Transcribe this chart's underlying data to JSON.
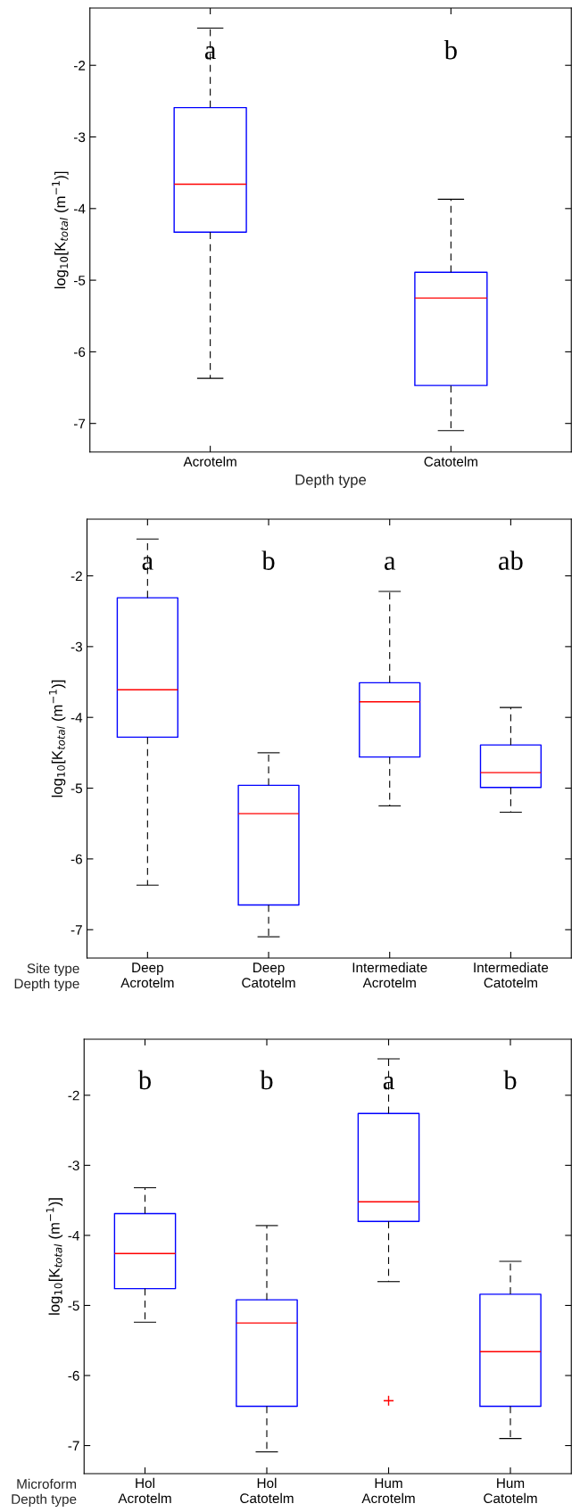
{
  "chart_data": [
    {
      "type": "box",
      "categories": [
        "Acrotelm",
        "Catotelm"
      ],
      "xlabel": "Depth type",
      "ylabel": "log$_{10}$[K$_{total}$ (m$^{−1}$)]",
      "color": "#0000ff",
      "ylim": [
        -7.4,
        -1.2
      ],
      "yticks": [
        -7,
        -6,
        -5,
        -4,
        -3,
        -2
      ],
      "grid": false,
      "boxes": [
        {
          "low": -6.37,
          "q1": -4.33,
          "median": -3.66,
          "q3": -2.59,
          "high": -1.48
        },
        {
          "low": -7.1,
          "q1": -6.47,
          "median": -5.25,
          "q3": -4.89,
          "high": -3.87
        }
      ],
      "annotations": [
        "a",
        "b"
      ]
    },
    {
      "type": "box",
      "categories": [
        "Deep\nAcrotelm",
        "Deep\nCatotelm",
        "Intermediate\nAcrotelm",
        "Intermediate\nCatotelm"
      ],
      "xlabel": "Site type\nDepth type",
      "ylabel": "log$_{10}$[K$_{total}$ (m$^{−1}$)]",
      "color": "#0000ff",
      "ylim": [
        -7.4,
        -1.2
      ],
      "yticks": [
        -7,
        -6,
        -5,
        -4,
        -3,
        -2
      ],
      "grid": false,
      "boxes": [
        {
          "low": -6.37,
          "q1": -4.28,
          "median": -3.61,
          "q3": -2.31,
          "high": -1.48
        },
        {
          "low": -7.1,
          "q1": -6.65,
          "median": -5.36,
          "q3": -4.96,
          "high": -4.5
        },
        {
          "low": -5.25,
          "q1": -4.56,
          "median": -3.78,
          "q3": -3.51,
          "high": -2.22
        },
        {
          "low": -5.34,
          "q1": -4.99,
          "median": -4.78,
          "q3": -4.39,
          "high": -3.86
        }
      ],
      "annotations": [
        "a",
        "b",
        "a",
        "ab"
      ]
    },
    {
      "type": "box",
      "categories": [
        "Hol\nAcrotelm",
        "Hol\nCatotelm",
        "Hum\nAcrotelm",
        "Hum\nCatotelm"
      ],
      "xlabel": "Microform\nDepth type",
      "ylabel": "log$_{10}$[K$_{total}$ (m$^{−1}$)]",
      "color": "#0000ff",
      "ylim": [
        -7.4,
        -1.2
      ],
      "yticks": [
        -7,
        -6,
        -5,
        -4,
        -3,
        -2
      ],
      "grid": false,
      "boxes": [
        {
          "low": -5.24,
          "q1": -4.76,
          "median": -4.26,
          "q3": -3.69,
          "high": -3.32
        },
        {
          "low": -7.09,
          "q1": -6.44,
          "median": -5.25,
          "q3": -4.92,
          "high": -3.86
        },
        {
          "low": -4.66,
          "q1": -3.8,
          "median": -3.52,
          "q3": -2.26,
          "high": -1.48,
          "outliers": [
            -6.36
          ]
        },
        {
          "low": -6.9,
          "q1": -6.44,
          "median": -5.66,
          "q3": -4.84,
          "high": -4.37
        }
      ],
      "annotations": [
        "b",
        "b",
        "a",
        "b"
      ]
    }
  ]
}
